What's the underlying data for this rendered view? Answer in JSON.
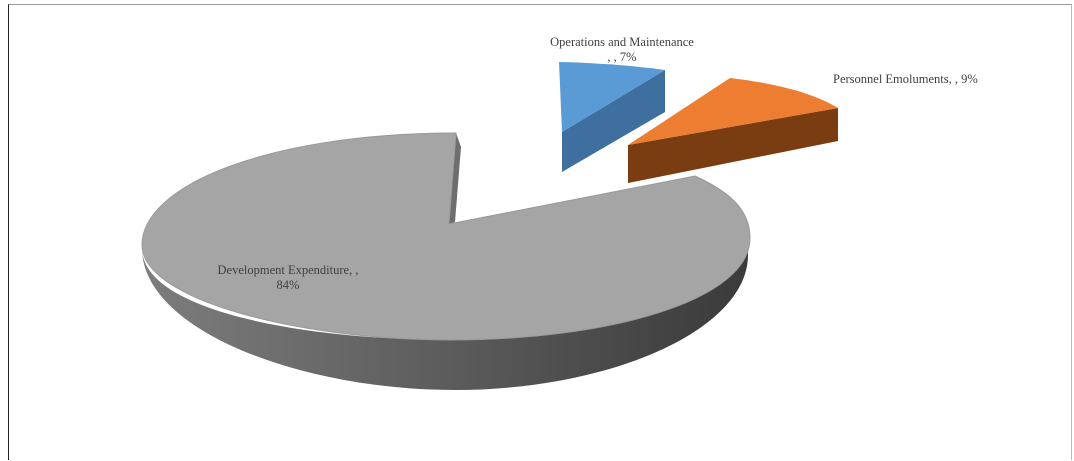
{
  "chart_data": {
    "type": "pie",
    "style": "3d-exploded",
    "legend": "none",
    "slices": [
      {
        "category": "Development Expenditure",
        "series": "",
        "value": 84,
        "label_line1": "Development Expenditure, ,",
        "label_line2": "84%",
        "color": "#a5a5a5"
      },
      {
        "category": "Operations and Maintenance",
        "series": "",
        "value": 7,
        "label_line1": "Operations and Maintenance",
        "label_line2": ", , 7%",
        "color": "#5b9bd5"
      },
      {
        "category": "Personnel Emoluments",
        "series": "",
        "value": 9,
        "label_line1": "Personnel Emoluments, , 9%",
        "label_line2": "",
        "color": "#ed7d31"
      }
    ]
  }
}
